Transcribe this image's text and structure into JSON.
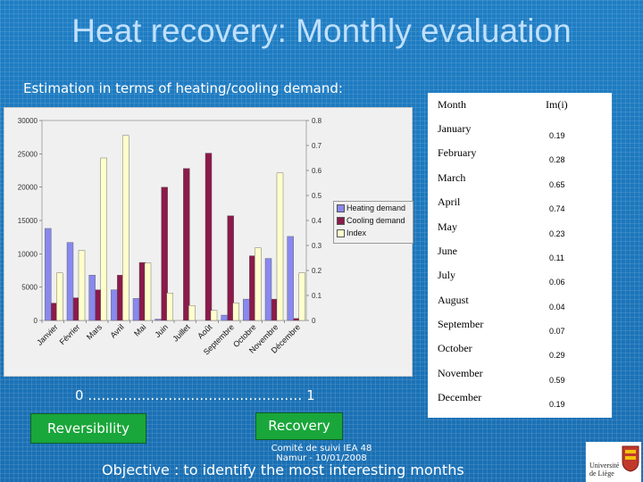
{
  "title": "Heat recovery: Monthly evaluation",
  "subtitle": "Estimation in terms of heating/cooling demand:",
  "chart_data": {
    "type": "bar",
    "categories": [
      "Janvier",
      "Février",
      "Mars",
      "Avril",
      "Mai",
      "Juin",
      "Juillet",
      "Août",
      "Septembre",
      "Octobre",
      "Novembre",
      "Décembre"
    ],
    "series": [
      {
        "name": "Heating demand",
        "axis": "left",
        "color": "#8888ee",
        "values": [
          13800,
          11700,
          6800,
          4600,
          3300,
          200,
          0,
          0,
          800,
          3200,
          9300,
          12600
        ]
      },
      {
        "name": "Cooling demand",
        "axis": "left",
        "color": "#8b1a4a",
        "values": [
          2600,
          3400,
          4600,
          6800,
          8700,
          20000,
          22800,
          25100,
          15700,
          9700,
          3200,
          300
        ]
      },
      {
        "name": "Index",
        "axis": "right",
        "color": "#ffffcc",
        "values": [
          0.19,
          0.28,
          0.65,
          0.74,
          0.23,
          0.11,
          0.06,
          0.04,
          0.07,
          0.29,
          0.59,
          0.19
        ]
      }
    ],
    "ylim_left": [
      0,
      30000
    ],
    "yticks_left": [
      "0",
      "5000",
      "10000",
      "15000",
      "20000",
      "25000",
      "30000"
    ],
    "ylim_right": [
      0,
      0.8
    ],
    "yticks_right": [
      "0",
      "0.1",
      "0.2",
      "0.3",
      "0.4",
      "0.5",
      "0.6",
      "0.7",
      "0.8"
    ],
    "legend_position": "right"
  },
  "legend": {
    "items": [
      {
        "label": "Heating demand",
        "color": "#8888ee"
      },
      {
        "label": "Cooling demand",
        "color": "#8b1a4a"
      },
      {
        "label": "Index",
        "color": "#ffffcc"
      }
    ]
  },
  "table": {
    "header_month": "Month",
    "header_value": "Im(i)",
    "rows": [
      {
        "month": "January",
        "value": "0.19"
      },
      {
        "month": "February",
        "value": "0.28"
      },
      {
        "month": "March",
        "value": "0.65"
      },
      {
        "month": "April",
        "value": "0.74"
      },
      {
        "month": "May",
        "value": "0.23"
      },
      {
        "month": "June",
        "value": "0.11"
      },
      {
        "month": "July",
        "value": "0.06"
      },
      {
        "month": "August",
        "value": "0.04"
      },
      {
        "month": "September",
        "value": "0.07"
      },
      {
        "month": "October",
        "value": "0.29"
      },
      {
        "month": "November",
        "value": "0.59"
      },
      {
        "month": "December",
        "value": "0.19"
      }
    ]
  },
  "scale_text": "0 ………………………………………… 1",
  "buttons": {
    "reversibility": "Reversibility",
    "recovery": "Recovery"
  },
  "footer": {
    "line1": "Comité de suivi IEA 48",
    "line2": "Namur - 10/01/2008"
  },
  "objective": "Objective : to identify the most interesting months",
  "logo": {
    "text": "Université de Liège"
  },
  "colors": {
    "background": "#1a73b8",
    "title": "#bfe0ff",
    "button": "#19a63a"
  }
}
